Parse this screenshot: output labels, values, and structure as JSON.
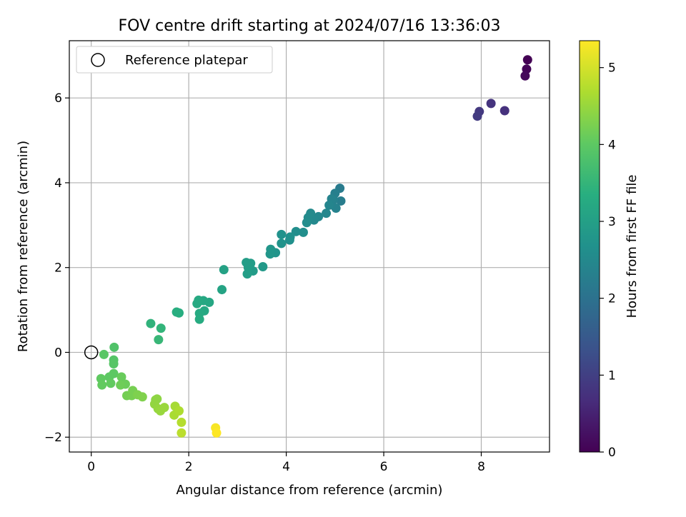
{
  "chart_data": {
    "type": "scatter",
    "title": "FOV centre drift starting at 2024/07/16 13:36:03",
    "xlabel": "Angular distance from reference (arcmin)",
    "ylabel": "Rotation from reference (arcmin)",
    "xlim": [
      -0.45,
      9.4
    ],
    "ylim": [
      -2.35,
      7.35
    ],
    "xticks": [
      0,
      2,
      4,
      6,
      8
    ],
    "yticks": [
      -2,
      0,
      2,
      4,
      6
    ],
    "xtick_labels": [
      "0",
      "2",
      "4",
      "6",
      "8"
    ],
    "ytick_labels": [
      "−2",
      "0",
      "2",
      "4",
      "6"
    ],
    "grid": true,
    "legend": {
      "position": "top-left",
      "entries": [
        "Reference platepar"
      ]
    },
    "colorbar": {
      "label": "Hours from first FF file",
      "colormap": "viridis",
      "range": [
        0,
        5.35
      ],
      "ticks": [
        0,
        1,
        2,
        3,
        4,
        5
      ],
      "tick_labels": [
        "0",
        "1",
        "2",
        "3",
        "4",
        "5"
      ]
    },
    "reference_point": {
      "x": 0,
      "y": 0
    },
    "series": [
      {
        "points": [
          [
            8.95,
            6.9,
            0.0
          ],
          [
            8.93,
            6.68,
            0.05
          ],
          [
            8.9,
            6.52,
            0.1
          ],
          [
            8.48,
            5.7,
            0.75
          ],
          [
            8.2,
            5.87,
            0.8
          ],
          [
            7.96,
            5.68,
            0.88
          ],
          [
            7.92,
            5.57,
            0.92
          ],
          [
            5.1,
            3.87,
            2.2
          ],
          [
            5.12,
            3.57,
            2.25
          ],
          [
            5.0,
            3.75,
            2.28
          ],
          [
            4.97,
            3.6,
            2.32
          ],
          [
            5.02,
            3.4,
            2.35
          ],
          [
            4.93,
            3.62,
            2.38
          ],
          [
            4.88,
            3.47,
            2.42
          ],
          [
            4.82,
            3.28,
            2.45
          ],
          [
            4.66,
            3.2,
            2.48
          ],
          [
            4.57,
            3.12,
            2.5
          ],
          [
            4.5,
            3.28,
            2.52
          ],
          [
            4.45,
            3.18,
            2.55
          ],
          [
            4.42,
            3.06,
            2.58
          ],
          [
            4.35,
            2.83,
            2.6
          ],
          [
            4.2,
            2.85,
            2.62
          ],
          [
            4.07,
            2.65,
            2.65
          ],
          [
            4.08,
            2.72,
            2.67
          ],
          [
            3.9,
            2.78,
            2.7
          ],
          [
            3.9,
            2.57,
            2.72
          ],
          [
            3.78,
            2.35,
            2.75
          ],
          [
            3.68,
            2.43,
            2.78
          ],
          [
            3.67,
            2.32,
            2.8
          ],
          [
            3.52,
            2.02,
            2.85
          ],
          [
            3.32,
            1.92,
            2.9
          ],
          [
            3.27,
            2.1,
            2.92
          ],
          [
            3.22,
            2.0,
            2.95
          ],
          [
            3.18,
            2.12,
            2.95
          ],
          [
            3.2,
            1.85,
            2.98
          ],
          [
            2.72,
            1.95,
            3.05
          ],
          [
            2.68,
            1.48,
            3.1
          ],
          [
            2.42,
            1.18,
            3.15
          ],
          [
            2.3,
            1.22,
            3.18
          ],
          [
            2.32,
            0.98,
            3.2
          ],
          [
            2.2,
            1.23,
            3.22
          ],
          [
            2.17,
            1.15,
            3.22
          ],
          [
            2.22,
            0.92,
            3.25
          ],
          [
            2.22,
            0.78,
            3.27
          ],
          [
            1.8,
            0.93,
            3.32
          ],
          [
            1.75,
            0.95,
            3.35
          ],
          [
            1.22,
            0.68,
            3.45
          ],
          [
            1.43,
            0.57,
            3.48
          ],
          [
            1.38,
            0.3,
            3.55
          ],
          [
            0.47,
            0.12,
            3.85
          ],
          [
            0.46,
            -0.18,
            3.9
          ],
          [
            0.46,
            -0.27,
            3.92
          ],
          [
            0.26,
            -0.05,
            3.95
          ],
          [
            0.46,
            -0.5,
            4.0
          ],
          [
            0.37,
            -0.58,
            4.0
          ],
          [
            0.2,
            -0.62,
            4.02
          ],
          [
            0.4,
            -0.73,
            4.05
          ],
          [
            0.22,
            -0.77,
            4.05
          ],
          [
            0.62,
            -0.58,
            4.1
          ],
          [
            0.7,
            -0.75,
            4.12
          ],
          [
            0.6,
            -0.77,
            4.15
          ],
          [
            0.73,
            -1.02,
            4.2
          ],
          [
            0.83,
            -1.02,
            4.22
          ],
          [
            0.85,
            -0.9,
            4.22
          ],
          [
            0.95,
            -1.0,
            4.28
          ],
          [
            1.05,
            -1.05,
            4.3
          ],
          [
            1.32,
            -1.12,
            4.4
          ],
          [
            1.35,
            -1.1,
            4.42
          ],
          [
            1.3,
            -1.22,
            4.45
          ],
          [
            1.37,
            -1.33,
            4.48
          ],
          [
            1.42,
            -1.38,
            4.5
          ],
          [
            1.5,
            -1.3,
            4.52
          ],
          [
            1.72,
            -1.27,
            4.62
          ],
          [
            1.7,
            -1.48,
            4.65
          ],
          [
            1.8,
            -1.38,
            4.68
          ],
          [
            1.85,
            -1.65,
            4.75
          ],
          [
            1.85,
            -1.9,
            4.8
          ],
          [
            2.55,
            -1.78,
            5.3
          ],
          [
            2.57,
            -1.9,
            5.35
          ]
        ]
      }
    ]
  }
}
